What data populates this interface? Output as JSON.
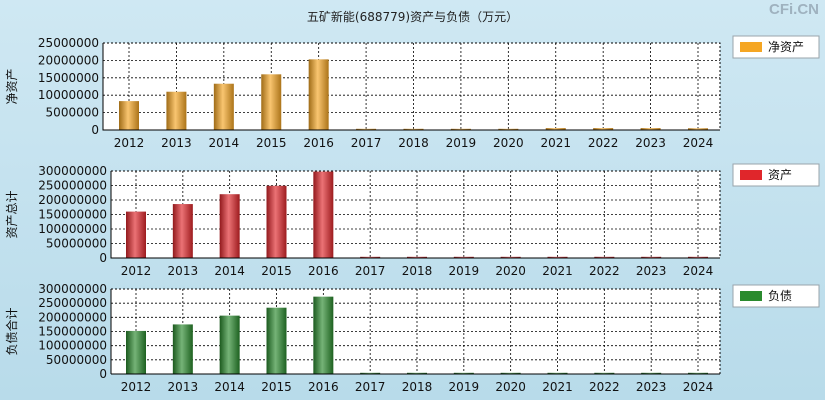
{
  "title": "五矿新能(688779)资产与负债（万元）",
  "watermark": "CFi.CN",
  "chart_data": [
    {
      "type": "bar",
      "ylabel": "净资产",
      "legend": "净资产",
      "legend_position": "top-right",
      "color": "#f5a623",
      "categories": [
        "2012",
        "2013",
        "2014",
        "2015",
        "2016",
        "2017",
        "2018",
        "2019",
        "2020",
        "2021",
        "2022",
        "2023",
        "2024"
      ],
      "values": [
        8300000,
        11000000,
        13300000,
        16000000,
        20300000,
        250000,
        250000,
        250000,
        300000,
        550000,
        550000,
        550000,
        500000
      ],
      "ylim": [
        0,
        25000000
      ],
      "yticks": [
        "0",
        "5000000",
        "10000000",
        "15000000",
        "20000000",
        "25000000"
      ],
      "grid": true
    },
    {
      "type": "bar",
      "ylabel": "资产总计",
      "legend": "资产",
      "legend_position": "top-right",
      "color": "#e0262b",
      "categories": [
        "2012",
        "2013",
        "2014",
        "2015",
        "2016",
        "2017",
        "2018",
        "2019",
        "2020",
        "2021",
        "2022",
        "2023",
        "2024"
      ],
      "values": [
        160000000,
        186000000,
        220000000,
        249000000,
        298000000,
        1000000,
        1000000,
        1000000,
        1000000,
        1000000,
        1000000,
        1000000,
        1000000
      ],
      "ylim": [
        0,
        300000000
      ],
      "yticks": [
        "0",
        "50000000",
        "100000000",
        "150000000",
        "200000000",
        "250000000",
        "300000000"
      ],
      "grid": true
    },
    {
      "type": "bar",
      "ylabel": "负债合计",
      "legend": "负债",
      "legend_position": "top-right",
      "color": "#2a8a2e",
      "categories": [
        "2012",
        "2013",
        "2014",
        "2015",
        "2016",
        "2017",
        "2018",
        "2019",
        "2020",
        "2021",
        "2022",
        "2023",
        "2024"
      ],
      "values": [
        152000000,
        175000000,
        206000000,
        234000000,
        273000000,
        500000,
        500000,
        500000,
        500000,
        500000,
        500000,
        500000,
        500000
      ],
      "ylim": [
        0,
        300000000
      ],
      "yticks": [
        "0",
        "50000000",
        "100000000",
        "150000000",
        "200000000",
        "250000000",
        "300000000"
      ],
      "grid": true
    }
  ]
}
